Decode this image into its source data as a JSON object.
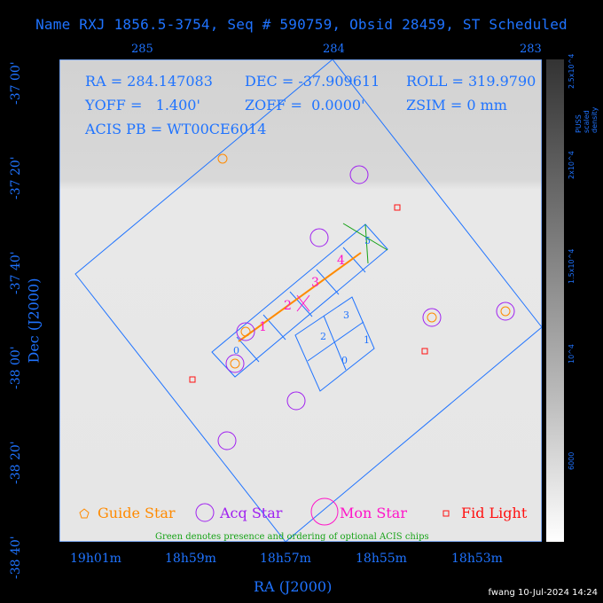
{
  "title": "Name RXJ 1856.5-3754, Seq # 590759, Obsid 28459, ST Scheduled",
  "top_axis_ticks": [
    "285",
    "284",
    "283"
  ],
  "bottom_axis_ticks": [
    "19h01m",
    "18h59m",
    "18h57m",
    "18h55m",
    "18h53m"
  ],
  "x_axis_label": "RA (J2000)",
  "y_axis_label": "Dec (J2000)",
  "dec_ticks": [
    "-37 00'",
    "-37 20'",
    "-37 40'",
    "-38 00'",
    "-38 20'",
    "-38 40'"
  ],
  "info": {
    "ra": "RA = 284.147083",
    "dec": "DEC = -37.909611",
    "roll": "ROLL = 319.9790",
    "yoff": "YOFF =   1.400'",
    "zoff": "ZOFF =  0.0000'",
    "zsim": "ZSIM = 0 mm",
    "acis": "ACIS PB = WT00CE6014"
  },
  "legend": {
    "guide": "Guide Star",
    "acq": "Acq Star",
    "mon": "Mon Star",
    "fid": "Fid Light",
    "note": "Green denotes presence and ordering of optional ACIS chips"
  },
  "chip_labels_s": [
    "0",
    "1",
    "2",
    "3",
    "4",
    "5"
  ],
  "chip_labels_i": [
    "0",
    "1",
    "2",
    "3"
  ],
  "colorbar": {
    "label": "PUSS scaled density",
    "ticks": [
      "6000",
      "10^4",
      "1.5x10^4",
      "2x10^4",
      "2.5x10^4"
    ]
  },
  "footer": "fwang 10-Jul-2024 14:24",
  "colors": {
    "blue": "#1f73ff",
    "orange": "#ff8a00",
    "purple": "#a020f0",
    "magenta": "#ff14c8",
    "red": "#ff1010",
    "green": "#17a317"
  }
}
